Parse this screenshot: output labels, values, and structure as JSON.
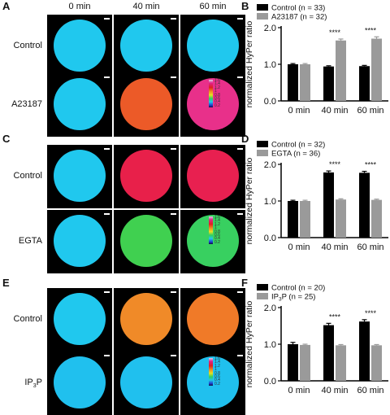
{
  "columns": [
    "0 min",
    "40 min",
    "60 min"
  ],
  "panels": [
    {
      "letter": "A",
      "rows": [
        {
          "label": "Control",
          "cells": [
            "#20c8ee",
            "#20c8ee",
            "#20c8ee"
          ],
          "rims": [
            "#40d878",
            "#40d878",
            "#40d878"
          ]
        },
        {
          "label": "A23187",
          "cells": [
            "#20c8ee",
            "#ec5a28",
            "#e8308a"
          ],
          "rims": [
            "#40d878",
            "#e83080",
            "#e8c8e8"
          ]
        }
      ]
    },
    {
      "letter": "C",
      "rows": [
        {
          "label": "Control",
          "cells": [
            "#20c8ee",
            "#e8204a",
            "#e82050"
          ],
          "rims": [
            "#40d878",
            "#e8a0e0",
            "#e8a0e0"
          ]
        },
        {
          "label": "EGTA",
          "cells": [
            "#20c8ee",
            "#40d050",
            "#38d060"
          ],
          "rims": [
            "#40d878",
            "#40d050",
            "#40d050"
          ]
        }
      ]
    },
    {
      "letter": "E",
      "rows": [
        {
          "label": "Control",
          "cells": [
            "#20c8ee",
            "#f08a28",
            "#f07a28"
          ],
          "rims": [
            "#40d878",
            "#e85020",
            "#e85020"
          ]
        },
        {
          "label": "IP3P",
          "cells": [
            "#20c0ee",
            "#20c0ee",
            "#20c0ee"
          ],
          "rims": [
            "#40c880",
            "#40c880",
            "#40c880"
          ]
        }
      ]
    }
  ],
  "colorbar": {
    "ticks": [
      "1.6",
      "1.4",
      "1.2",
      "1",
      "0.8",
      "0.6",
      "0.4",
      "0.2"
    ]
  },
  "chart_data": [
    {
      "type": "bar",
      "letter": "B",
      "categories": [
        "0 min",
        "40 min",
        "60 min"
      ],
      "series": [
        {
          "name": "Control (n = 33)",
          "values": [
            1.0,
            0.94,
            0.95
          ],
          "color": "#000000"
        },
        {
          "name": "A23187 (n = 32)",
          "values": [
            1.0,
            1.65,
            1.7
          ],
          "color": "#9a9a9a"
        }
      ],
      "errors": [
        [
          0.02,
          0.02,
          0.02
        ],
        [
          0.02,
          0.04,
          0.05
        ]
      ],
      "significance": [
        "",
        "****",
        "****"
      ],
      "ylabel": "normalized HyPer ratio",
      "ylim": [
        0,
        2.0
      ],
      "yticks": [
        "0.0",
        "1.0",
        "2.0"
      ]
    },
    {
      "type": "bar",
      "letter": "D",
      "categories": [
        "0 min",
        "40 min",
        "60 min"
      ],
      "series": [
        {
          "name": "Control (n = 32)",
          "values": [
            1.0,
            1.78,
            1.77
          ],
          "color": "#000000"
        },
        {
          "name": "EGTA (n = 36)",
          "values": [
            1.0,
            1.04,
            1.03
          ],
          "color": "#9a9a9a"
        }
      ],
      "errors": [
        [
          0.02,
          0.04,
          0.04
        ],
        [
          0.02,
          0.02,
          0.02
        ]
      ],
      "significance": [
        "",
        "****",
        "****"
      ],
      "ylabel": "normalized HyPer ratio",
      "ylim": [
        0,
        2.0
      ],
      "yticks": [
        "0.0",
        "1.0",
        "2.0"
      ]
    },
    {
      "type": "bar",
      "letter": "F",
      "categories": [
        "0 min",
        "40 min",
        "60 min"
      ],
      "series": [
        {
          "name": "Control (n = 20)",
          "values": [
            1.0,
            1.52,
            1.62
          ],
          "color": "#000000"
        },
        {
          "name": "IP3P (n = 25)",
          "values": [
            0.98,
            0.97,
            0.97
          ],
          "color": "#9a9a9a"
        }
      ],
      "errors": [
        [
          0.05,
          0.05,
          0.05
        ],
        [
          0.02,
          0.02,
          0.02
        ]
      ],
      "significance": [
        "",
        "****",
        "****"
      ],
      "ylabel": "normalized HyPer ratio",
      "ylim": [
        0,
        2.0
      ],
      "yticks": [
        "0.0",
        "1.0",
        "2.0"
      ]
    }
  ]
}
